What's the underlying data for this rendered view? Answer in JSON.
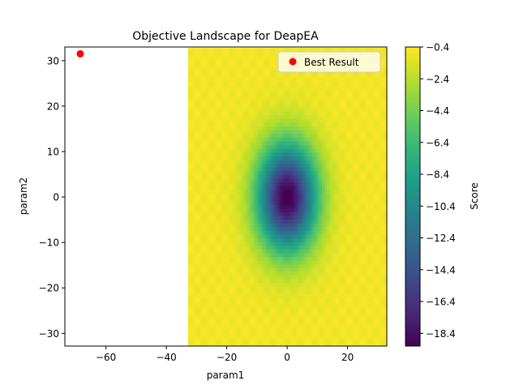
{
  "chart_data": {
    "type": "heatmap",
    "title": "Objective Landscape for DeapEA",
    "xlabel": "param1",
    "ylabel": "param2",
    "xlim": [
      -73.6,
      33
    ],
    "ylim": [
      -32.8,
      33
    ],
    "xticks": [
      -60,
      -40,
      -20,
      0,
      20
    ],
    "xtick_labels": [
      "−60",
      "−40",
      "−20",
      "0",
      "20"
    ],
    "yticks": [
      -30,
      -20,
      -10,
      0,
      10,
      20,
      30
    ],
    "ytick_labels": [
      "−30",
      "−20",
      "−10",
      "0",
      "10",
      "20",
      "30"
    ],
    "heatmap": {
      "x_range": [
        -32.8,
        32.8
      ],
      "y_range": [
        -32.8,
        32.8
      ],
      "center": [
        0,
        0
      ],
      "min_score": -19.2,
      "max_score": -0.4,
      "colormap": "viridis"
    },
    "best_result": {
      "label": "Best Result",
      "x": -68.5,
      "y": 31.5,
      "color": "#ff0000"
    },
    "legend": {
      "placement": "top-right",
      "entries": [
        "Best Result"
      ]
    },
    "colorbar": {
      "label": "Score",
      "ticks": [
        -0.4,
        -2.4,
        -4.4,
        -6.4,
        -8.4,
        -10.4,
        -12.4,
        -14.4,
        -16.4,
        -18.4
      ],
      "tick_labels": [
        "−0.4",
        "−2.4",
        "−4.4",
        "−6.4",
        "−8.4",
        "−10.4",
        "−12.4",
        "−14.4",
        "−16.4",
        "−18.4"
      ],
      "range": [
        -19.2,
        -0.4
      ]
    },
    "grid": false
  }
}
